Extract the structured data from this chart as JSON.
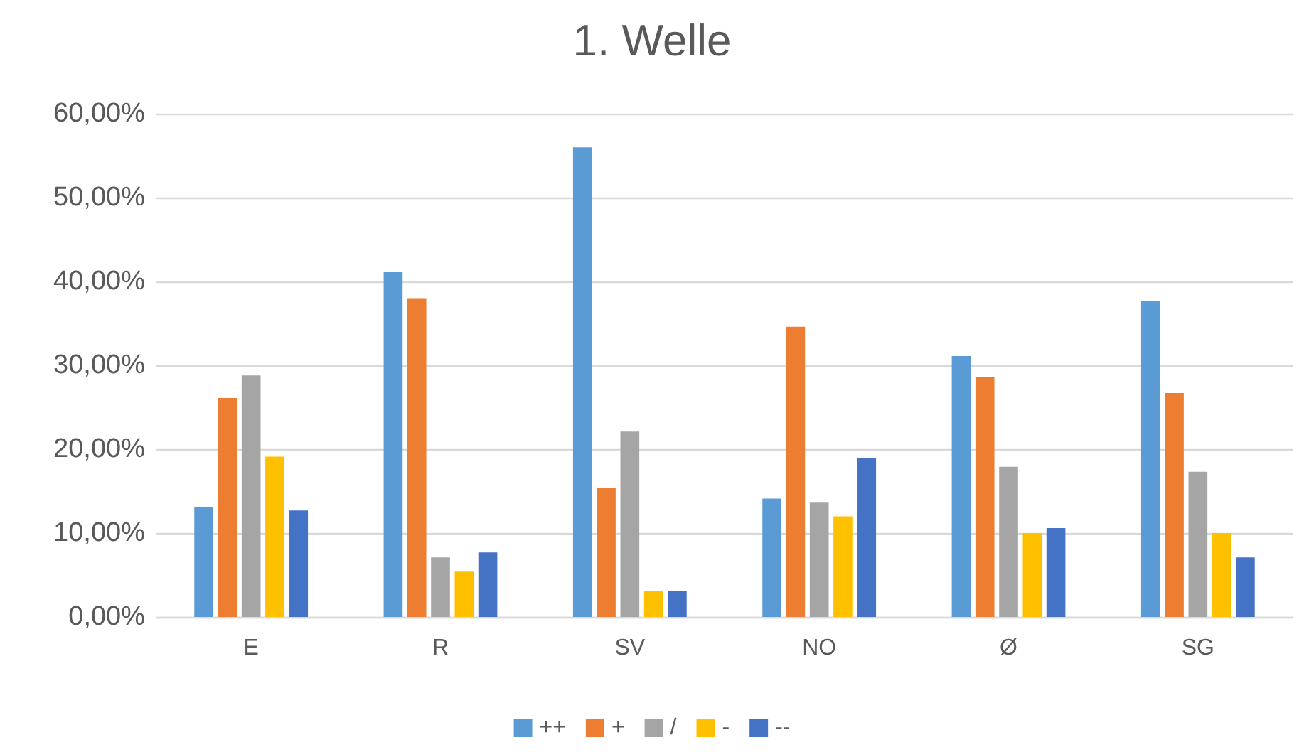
{
  "chart_data": {
    "type": "bar",
    "title": "1. Welle",
    "categories": [
      "E",
      "R",
      "SV",
      "NO",
      "Ø",
      "SG"
    ],
    "series": [
      {
        "name": "++",
        "color": "#5b9bd5",
        "values": [
          13.1,
          41.1,
          56.0,
          14.1,
          31.1,
          37.7
        ]
      },
      {
        "name": "+",
        "color": "#ed7d31",
        "values": [
          26.1,
          38.0,
          15.4,
          34.6,
          28.6,
          26.7
        ]
      },
      {
        "name": "/",
        "color": "#a5a5a5",
        "values": [
          28.8,
          7.1,
          22.1,
          13.7,
          17.9,
          17.3
        ]
      },
      {
        "name": "-",
        "color": "#ffc000",
        "values": [
          19.1,
          5.4,
          3.1,
          12.0,
          10.0,
          10.0
        ]
      },
      {
        "name": "--",
        "color": "#4472c4",
        "values": [
          12.7,
          7.7,
          3.1,
          18.9,
          10.6,
          7.1
        ]
      }
    ],
    "ylim": [
      0,
      60
    ],
    "yticks": [
      {
        "value": 0,
        "label": "0,00%"
      },
      {
        "value": 10,
        "label": "10,00%"
      },
      {
        "value": 20,
        "label": "20,00%"
      },
      {
        "value": 30,
        "label": "30,00%"
      },
      {
        "value": 40,
        "label": "40,00%"
      },
      {
        "value": 50,
        "label": "50,00%"
      },
      {
        "value": 60,
        "label": "60,00%"
      }
    ],
    "grid": "y",
    "legend": "bottom"
  }
}
